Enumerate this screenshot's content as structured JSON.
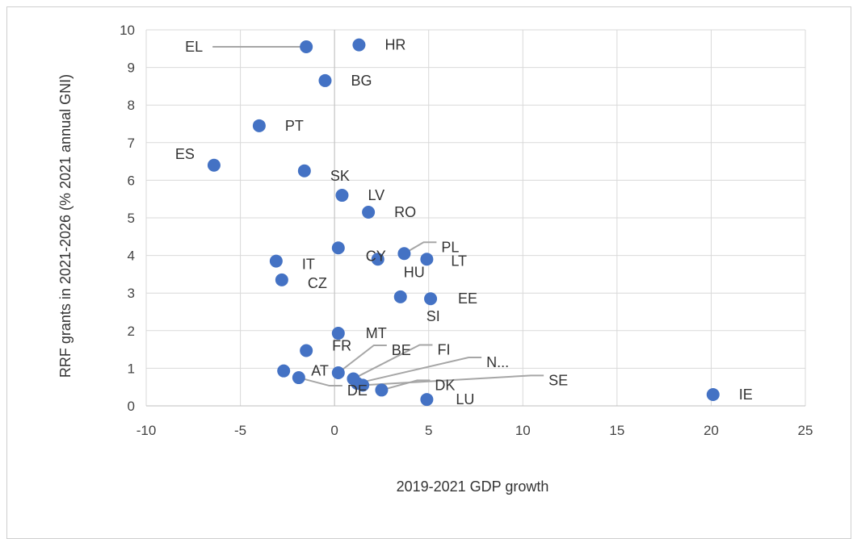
{
  "chart_data": {
    "type": "scatter",
    "xlabel": "2019-2021 GDP growth",
    "ylabel": "RRF grants in 2021-2026 (% 2021 annual GNI)",
    "xlim": [
      -10,
      25
    ],
    "ylim": [
      0,
      10
    ],
    "xticks": [
      "-10",
      "-5",
      "0",
      "5",
      "10",
      "15",
      "20",
      "25"
    ],
    "yticks": [
      "0",
      "1",
      "2",
      "3",
      "4",
      "5",
      "6",
      "7",
      "8",
      "9",
      "10"
    ],
    "grid": true,
    "legend": "none",
    "marker_color": "#4472C4",
    "points": [
      {
        "label": "EL",
        "x": -1.5,
        "y": 9.55
      },
      {
        "label": "HR",
        "x": 1.3,
        "y": 9.6
      },
      {
        "label": "BG",
        "x": -0.5,
        "y": 8.65
      },
      {
        "label": "PT",
        "x": -4.0,
        "y": 7.45
      },
      {
        "label": "ES",
        "x": -6.4,
        "y": 6.4
      },
      {
        "label": "SK",
        "x": -1.6,
        "y": 6.25
      },
      {
        "label": "LV",
        "x": 0.4,
        "y": 5.6
      },
      {
        "label": "RO",
        "x": 1.8,
        "y": 5.15
      },
      {
        "label": "CY",
        "x": 0.2,
        "y": 4.2
      },
      {
        "label": "PL",
        "x": 3.7,
        "y": 4.05
      },
      {
        "label": "LT",
        "x": 4.9,
        "y": 3.9
      },
      {
        "label": "HU",
        "x": 2.3,
        "y": 3.9
      },
      {
        "label": "IT",
        "x": -3.1,
        "y": 3.85
      },
      {
        "label": "CZ",
        "x": -2.8,
        "y": 3.35
      },
      {
        "label": "SI",
        "x": 3.5,
        "y": 2.9
      },
      {
        "label": "EE",
        "x": 5.1,
        "y": 2.85
      },
      {
        "label": "MT",
        "x": 0.2,
        "y": 1.93
      },
      {
        "label": "FR",
        "x": -1.5,
        "y": 1.47
      },
      {
        "label": "BE",
        "x": 0.2,
        "y": 0.88
      },
      {
        "label": "AT",
        "x": -2.7,
        "y": 0.93
      },
      {
        "label": "FI",
        "x": 1.0,
        "y": 0.72
      },
      {
        "label": "N...",
        "x": 1.2,
        "y": 0.6
      },
      {
        "label": "SE",
        "x": 1.5,
        "y": 0.55
      },
      {
        "label": "DE",
        "x": -1.9,
        "y": 0.75
      },
      {
        "label": "DK",
        "x": 2.5,
        "y": 0.42
      },
      {
        "label": "LU",
        "x": 4.9,
        "y": 0.17
      },
      {
        "label": "IE",
        "x": 20.1,
        "y": 0.3
      }
    ]
  }
}
